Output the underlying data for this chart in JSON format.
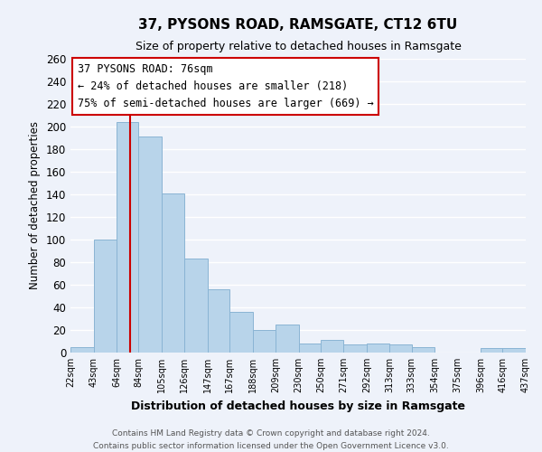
{
  "title": "37, PYSONS ROAD, RAMSGATE, CT12 6TU",
  "subtitle": "Size of property relative to detached houses in Ramsgate",
  "xlabel": "Distribution of detached houses by size in Ramsgate",
  "ylabel": "Number of detached properties",
  "bar_color": "#b8d4ea",
  "bar_edge_color": "#8ab4d4",
  "background_color": "#eef2fa",
  "grid_color": "#ffffff",
  "vline_x": 76,
  "vline_color": "#cc0000",
  "bin_edges": [
    22,
    43,
    64,
    84,
    105,
    126,
    147,
    167,
    188,
    209,
    230,
    250,
    271,
    292,
    313,
    333,
    354,
    375,
    396,
    416,
    437
  ],
  "bin_labels": [
    "22sqm",
    "43sqm",
    "64sqm",
    "84sqm",
    "105sqm",
    "126sqm",
    "147sqm",
    "167sqm",
    "188sqm",
    "209sqm",
    "230sqm",
    "250sqm",
    "271sqm",
    "292sqm",
    "313sqm",
    "333sqm",
    "354sqm",
    "375sqm",
    "396sqm",
    "416sqm",
    "437sqm"
  ],
  "counts": [
    5,
    100,
    204,
    191,
    141,
    83,
    56,
    36,
    20,
    25,
    8,
    11,
    7,
    8,
    7,
    5,
    0,
    0,
    4,
    4
  ],
  "ylim": [
    0,
    260
  ],
  "yticks": [
    0,
    20,
    40,
    60,
    80,
    100,
    120,
    140,
    160,
    180,
    200,
    220,
    240,
    260
  ],
  "annotation_title": "37 PYSONS ROAD: 76sqm",
  "annotation_line1": "← 24% of detached houses are smaller (218)",
  "annotation_line2": "75% of semi-detached houses are larger (669) →",
  "annotation_box_color": "white",
  "annotation_box_edge_color": "#cc0000",
  "footer_line1": "Contains HM Land Registry data © Crown copyright and database right 2024.",
  "footer_line2": "Contains public sector information licensed under the Open Government Licence v3.0."
}
